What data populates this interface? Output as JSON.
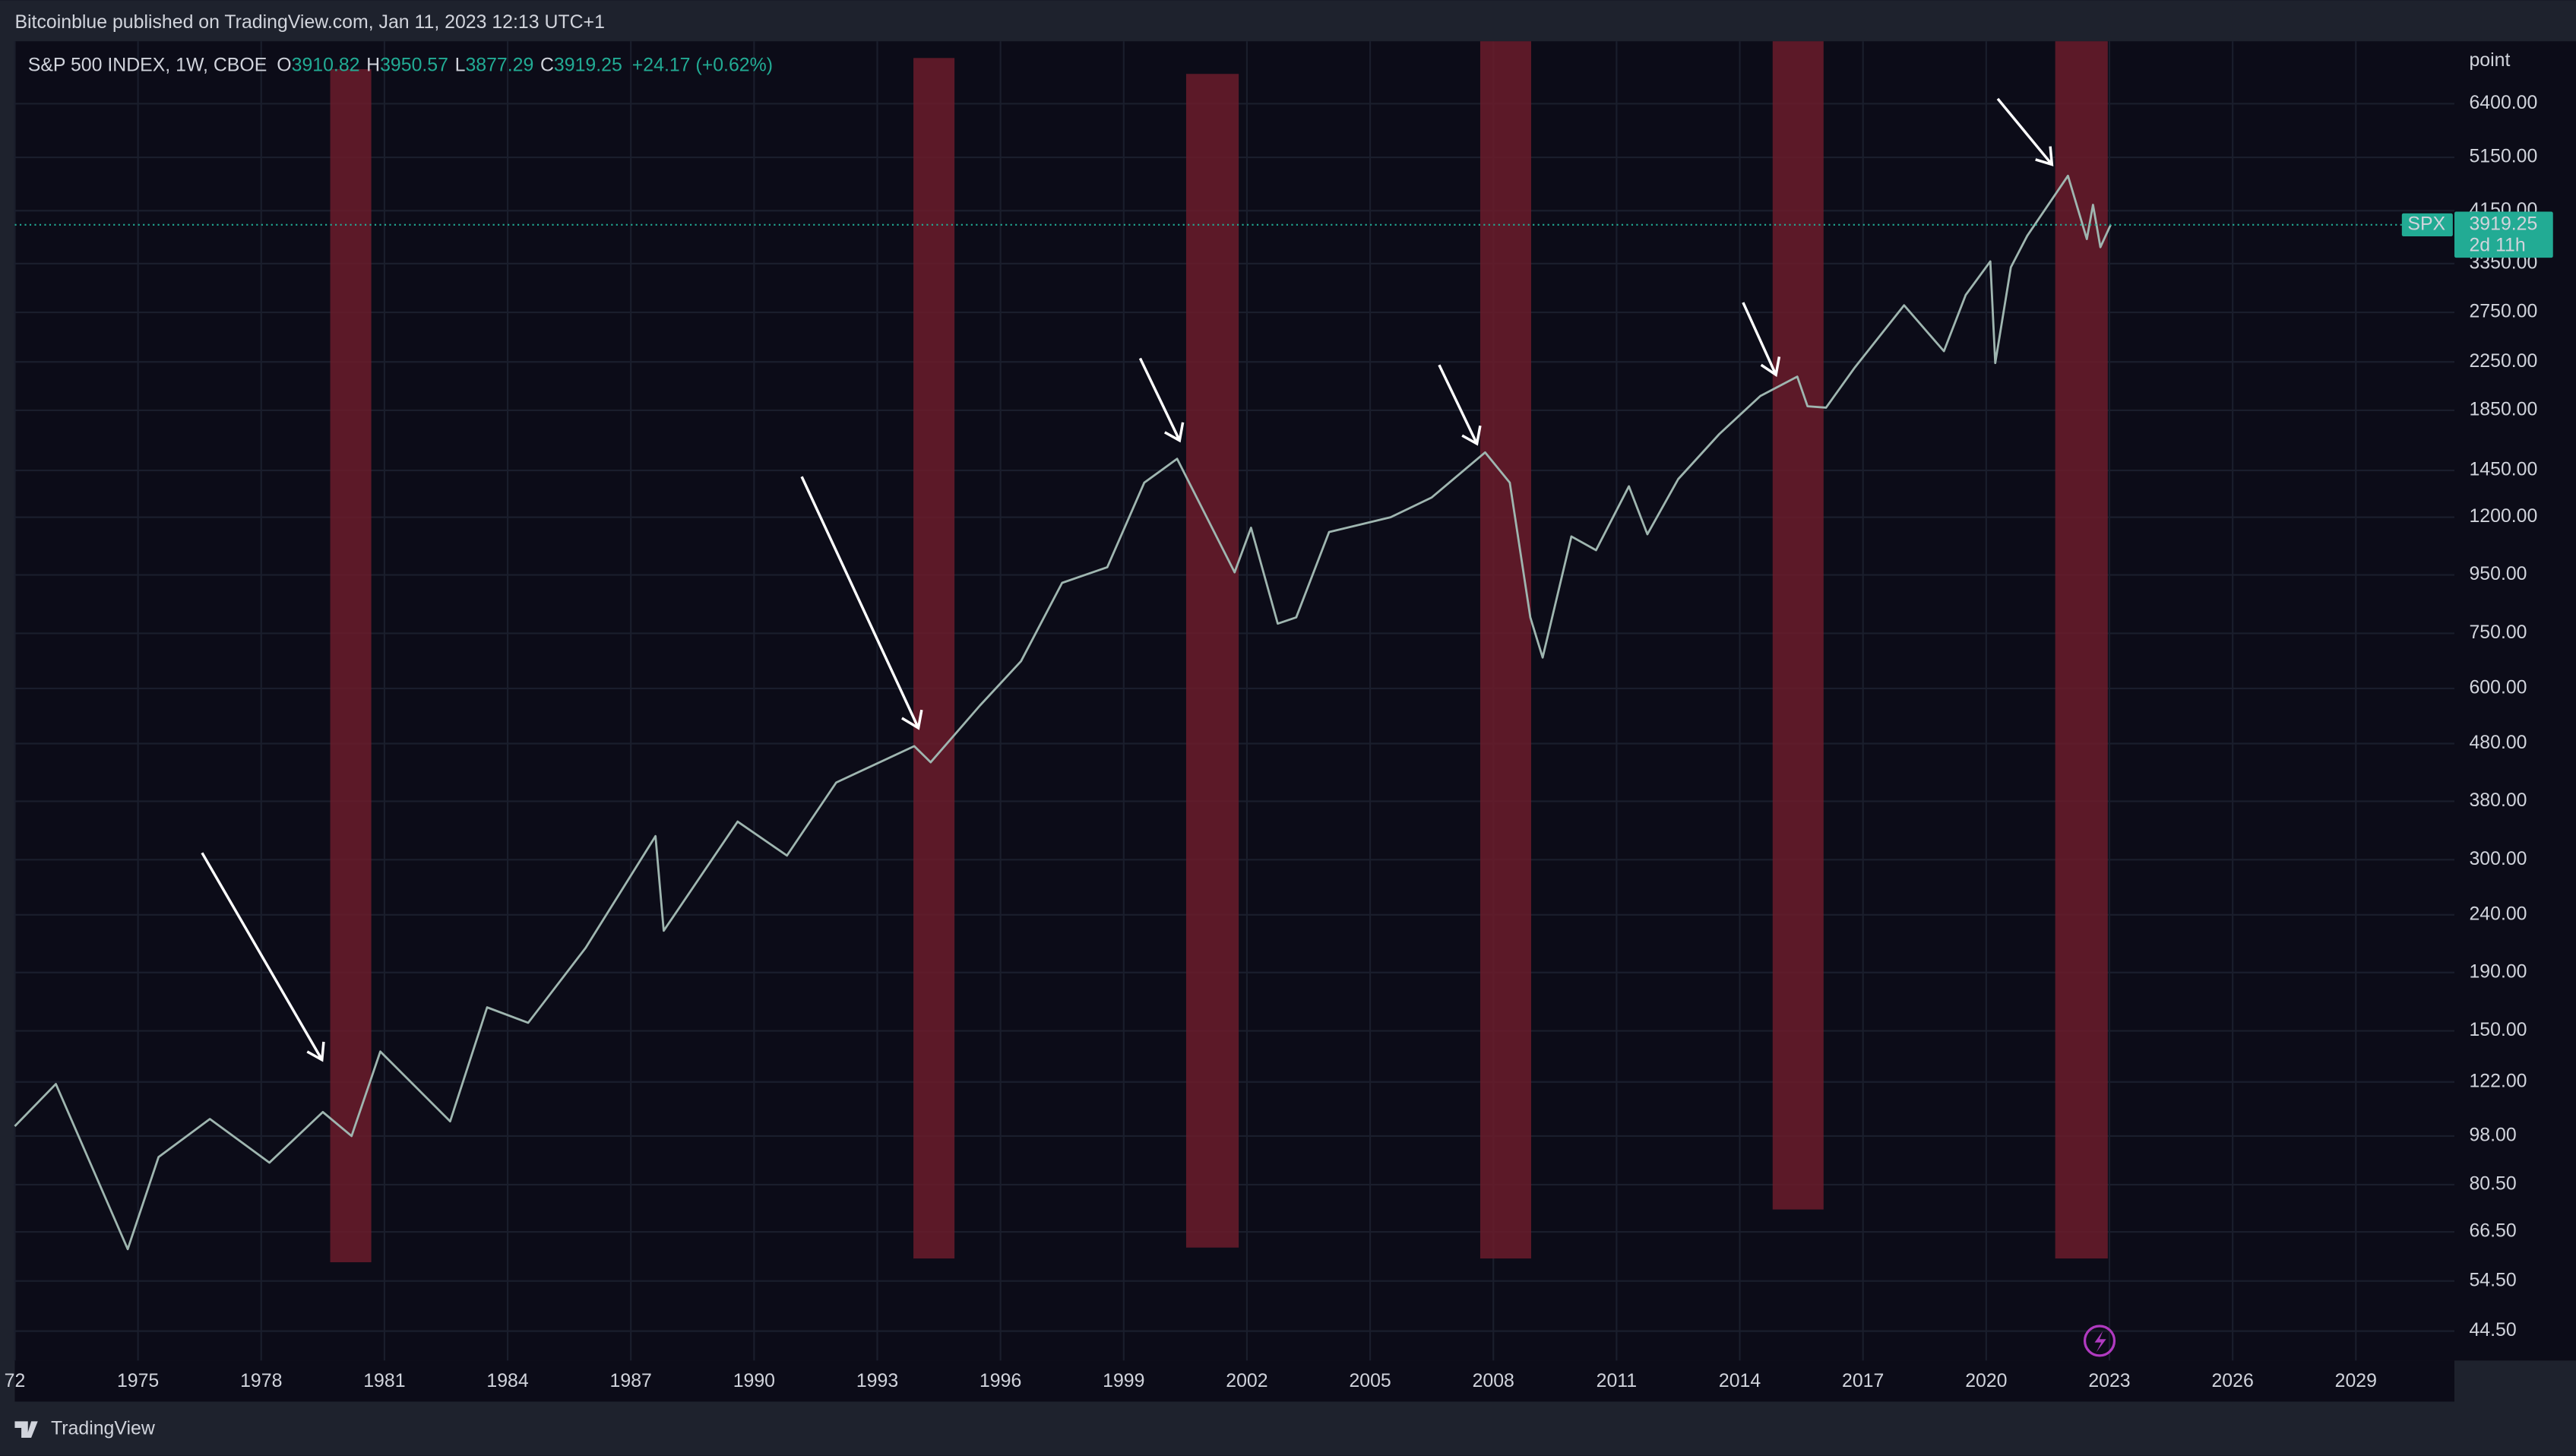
{
  "chart_data": {
    "type": "line",
    "published": "Bitcoinblue published on TradingView.com, Jan 11, 2023 12:13 UTC+1",
    "title": "S&P 500 INDEX, 1W, CBOE",
    "ohlc_labels": [
      "O",
      "H",
      "L",
      "C"
    ],
    "ohlc": [
      3910.82,
      3950.57,
      3877.29,
      3919.25
    ],
    "change": "+24.17 (+0.62%)",
    "symbol": "SPX",
    "countdown": "2d 11h",
    "y_axis_label": "point",
    "brand": "TradingView",
    "log_scale": true,
    "grid": true,
    "color": "#9fb6b0",
    "x": [
      1972.0,
      1973.0,
      1974.75,
      1975.5,
      1976.75,
      1978.2,
      1979.5,
      1980.2,
      1980.9,
      1982.6,
      1983.5,
      1984.5,
      1985.9,
      1987.6,
      1987.8,
      1989.6,
      1990.8,
      1992.0,
      1993.9,
      1994.3,
      1995.5,
      1996.5,
      1997.5,
      1998.6,
      1999.5,
      2000.3,
      2001.7,
      2002.1,
      2002.75,
      2003.2,
      2004.0,
      2005.5,
      2006.5,
      2007.8,
      2008.4,
      2008.9,
      2009.2,
      2009.9,
      2010.5,
      2011.3,
      2011.75,
      2012.5,
      2013.5,
      2014.5,
      2015.4,
      2015.65,
      2016.1,
      2016.8,
      2018.0,
      2018.97,
      2019.5,
      2020.1,
      2020.22,
      2020.6,
      2021.0,
      2021.99,
      2022.45,
      2022.6,
      2022.78,
      2023.03
    ],
    "values": [
      102,
      121,
      62,
      90,
      105,
      88,
      108,
      98,
      138,
      104,
      165,
      155,
      210,
      330,
      225,
      350,
      305,
      410,
      475,
      445,
      560,
      670,
      920,
      980,
      1380,
      1520,
      960,
      1150,
      780,
      800,
      1130,
      1200,
      1300,
      1560,
      1380,
      800,
      680,
      1110,
      1050,
      1360,
      1120,
      1400,
      1680,
      1960,
      2120,
      1880,
      1870,
      2200,
      2830,
      2350,
      2950,
      3380,
      2240,
      3300,
      3750,
      4780,
      3700,
      4250,
      3580,
      3919.25
    ],
    "zones": [
      {
        "x": [
          1979.68,
          1980.68
        ],
        "y": [
          58.8,
          7360
        ]
      },
      {
        "x": [
          1993.88,
          1994.88
        ],
        "y": [
          59.7,
          7700
        ]
      },
      {
        "x": [
          2000.52,
          2001.8
        ],
        "y": [
          62.4,
          7220
        ]
      },
      {
        "x": [
          2007.68,
          2008.92
        ],
        "y": [
          59.7,
          8240
        ]
      },
      {
        "x": [
          2014.8,
          2016.04
        ],
        "y": [
          72.8,
          8240
        ]
      },
      {
        "x": [
          2021.68,
          2022.96
        ],
        "y": [
          59.7,
          8240
        ]
      }
    ],
    "zone_color": "#6b1c2c",
    "xlim": [
      1972,
      2031.4
    ],
    "xticks": [
      {
        "value": 1972,
        "label": "72"
      },
      1975,
      1978,
      1981,
      1984,
      1987,
      1990,
      1993,
      1996,
      1999,
      2002,
      2005,
      2008,
      2011,
      2014,
      2017,
      2020,
      2023,
      2026,
      2029
    ],
    "ylim": [
      39.5,
      8240
    ],
    "yticks": [
      {
        "value": 6400,
        "label": "6400.00"
      },
      {
        "value": 5150,
        "label": "5150.00"
      },
      {
        "value": 4150,
        "label": "4150.00"
      },
      {
        "value": 3350,
        "label": "3350.00"
      },
      {
        "value": 2750,
        "label": "2750.00"
      },
      {
        "value": 2250,
        "label": "2250.00"
      },
      {
        "value": 1850,
        "label": "1850.00"
      },
      {
        "value": 1450,
        "label": "1450.00"
      },
      {
        "value": 1200,
        "label": "1200.00"
      },
      {
        "value": 950,
        "label": "950.00"
      },
      {
        "value": 750,
        "label": "750.00"
      },
      {
        "value": 600,
        "label": "600.00"
      },
      {
        "value": 480,
        "label": "480.00"
      },
      {
        "value": 380,
        "label": "380.00"
      },
      {
        "value": 300,
        "label": "300.00"
      },
      {
        "value": 240,
        "label": "240.00"
      },
      {
        "value": 190,
        "label": "190.00"
      },
      {
        "value": 150,
        "label": "150.00"
      },
      {
        "value": 122,
        "label": "122.00"
      },
      {
        "value": 98,
        "label": "98.00"
      },
      {
        "value": 80.5,
        "label": "80.50"
      },
      {
        "value": 66.5,
        "label": "66.50"
      },
      {
        "value": 54.5,
        "label": "54.50"
      },
      {
        "value": 44.5,
        "label": "44.50"
      }
    ]
  }
}
